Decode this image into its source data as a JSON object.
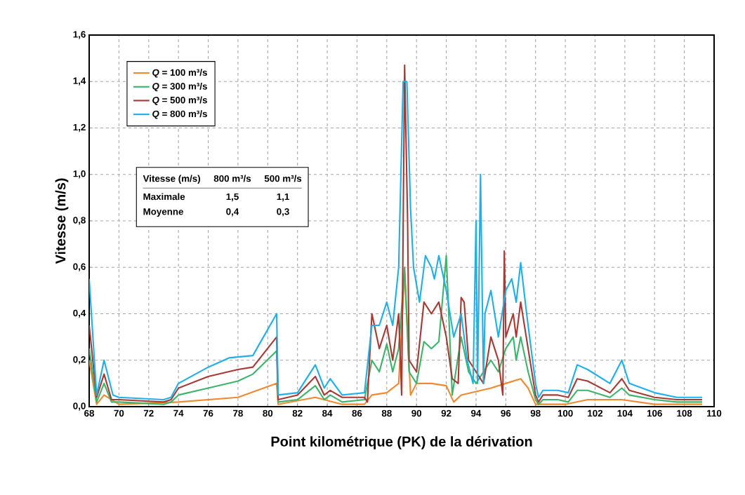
{
  "chart_data": {
    "type": "line",
    "xlabel": "Point kilométrique (PK) de la dérivation",
    "ylabel": "Vitesse (m/s)",
    "xlim": [
      68,
      110
    ],
    "ylim": [
      0,
      1.6
    ],
    "xticks": [
      68,
      70,
      72,
      74,
      76,
      78,
      80,
      82,
      84,
      86,
      88,
      90,
      92,
      94,
      96,
      98,
      100,
      102,
      104,
      106,
      108,
      110
    ],
    "yticks": [
      {
        "value": 0,
        "label": "0,0"
      },
      {
        "value": 0.2,
        "label": "0,2"
      },
      {
        "value": 0.4,
        "label": "0,4"
      },
      {
        "value": 0.6,
        "label": "0,6"
      },
      {
        "value": 0.8,
        "label": "0,8"
      },
      {
        "value": 1.0,
        "label": "1,0"
      },
      {
        "value": 1.2,
        "label": "1,2"
      },
      {
        "value": 1.4,
        "label": "1,4"
      },
      {
        "value": 1.6,
        "label": "1,6"
      }
    ],
    "grid": true,
    "legend": "top left",
    "line_style": "solid",
    "annotations": [
      "Vitesse (m/s)",
      "800 m³/s",
      "500 m³/s",
      "Maximale",
      "1,5",
      "1,1",
      "Moyenne",
      "0,4",
      "0,3"
    ],
    "series": [
      {
        "name": "*Q* = 100 m³/s",
        "color": "#f08a30",
        "x": [
          68,
          68.5,
          69,
          70,
          74,
          78,
          80.6,
          80.7,
          83.2,
          85,
          86.5,
          87,
          88,
          88.8,
          89.2,
          89.6,
          90,
          91,
          92,
          92.5,
          93,
          95,
          96,
          97,
          97.5,
          98,
          100,
          101.5,
          103.8,
          106,
          109.2
        ],
        "values": [
          0.2,
          0.01,
          0.05,
          0.01,
          0.02,
          0.04,
          0.1,
          0.01,
          0.04,
          0.01,
          0.01,
          0.05,
          0.06,
          0.1,
          0.58,
          0.05,
          0.1,
          0.1,
          0.09,
          0.02,
          0.05,
          0.08,
          0.1,
          0.12,
          0.08,
          0.01,
          0.01,
          0.03,
          0.03,
          0.01,
          0.01
        ]
      },
      {
        "name": "*Q* = 300 m³/s",
        "color": "#3cb56a",
        "x": [
          68,
          68.5,
          69,
          69.5,
          70,
          73,
          73.5,
          74,
          76,
          78,
          79,
          80.6,
          80.7,
          82,
          83.2,
          83.8,
          84.2,
          85,
          86.5,
          87,
          87.5,
          88,
          88.4,
          88.8,
          89.2,
          89.5,
          90,
          90.5,
          91,
          91.5,
          92,
          92.4,
          93,
          93.5,
          94,
          95,
          95.5,
          96,
          96.5,
          96.7,
          97,
          97.5,
          98,
          98.2,
          98.5,
          99.5,
          100.2,
          100.8,
          101.5,
          103,
          103.8,
          104.3,
          106,
          107.5,
          109.2
        ],
        "values": [
          0.25,
          0.02,
          0.1,
          0.02,
          0.02,
          0.01,
          0.02,
          0.05,
          0.08,
          0.11,
          0.14,
          0.24,
          0.02,
          0.03,
          0.09,
          0.03,
          0.05,
          0.02,
          0.03,
          0.2,
          0.15,
          0.27,
          0.15,
          0.25,
          0.6,
          0.15,
          0.1,
          0.28,
          0.25,
          0.28,
          0.65,
          0.05,
          0.3,
          0.15,
          0.1,
          0.2,
          0.15,
          0.25,
          0.3,
          0.2,
          0.3,
          0.15,
          0.03,
          0.01,
          0.03,
          0.03,
          0.02,
          0.07,
          0.07,
          0.04,
          0.08,
          0.05,
          0.03,
          0.02,
          0.02
        ]
      },
      {
        "name": "*Q* = 500 m³/s",
        "color": "#a83a35",
        "x": [
          68,
          68.5,
          69,
          69.5,
          70,
          73,
          73.5,
          74,
          76,
          78,
          79,
          80.6,
          80.7,
          82,
          83.2,
          83.8,
          84.2,
          85,
          86.5,
          86.7,
          87,
          87.5,
          88,
          88.4,
          88.8,
          89,
          89.2,
          89.4,
          89.5,
          90,
          90.5,
          91,
          91.5,
          92,
          92.4,
          92.8,
          93,
          93.2,
          93.5,
          94,
          94.5,
          95,
          95.5,
          95.8,
          95.9,
          96,
          96.5,
          96.7,
          97,
          97.5,
          98,
          98.2,
          98.5,
          99.5,
          100.2,
          100.8,
          101.5,
          103,
          103.8,
          104.3,
          106,
          107.5,
          109.2
        ],
        "values": [
          0.35,
          0.04,
          0.14,
          0.03,
          0.03,
          0.02,
          0.03,
          0.08,
          0.13,
          0.16,
          0.17,
          0.3,
          0.03,
          0.05,
          0.13,
          0.05,
          0.07,
          0.04,
          0.04,
          0.02,
          0.4,
          0.25,
          0.35,
          0.2,
          0.4,
          0.05,
          1.47,
          0.8,
          0.2,
          0.15,
          0.45,
          0.4,
          0.45,
          0.3,
          0.12,
          0.1,
          0.47,
          0.45,
          0.2,
          0.15,
          0.1,
          0.3,
          0.2,
          0.05,
          0.67,
          0.3,
          0.4,
          0.3,
          0.45,
          0.25,
          0.05,
          0.02,
          0.05,
          0.05,
          0.04,
          0.12,
          0.11,
          0.06,
          0.12,
          0.07,
          0.04,
          0.03,
          0.03
        ]
      },
      {
        "name": "*Q* = 800 m³/s",
        "color": "#1fb0e8",
        "x": [
          68,
          68.5,
          69,
          69.6,
          70,
          73,
          73.5,
          74,
          76,
          77.4,
          79,
          80.6,
          80.7,
          82,
          83.2,
          83.8,
          84.2,
          85,
          86.5,
          87,
          87.5,
          88,
          88.4,
          88.8,
          89.1,
          89.35,
          89.6,
          89.8,
          90.2,
          90.6,
          91,
          91.2,
          91.5,
          92,
          92.5,
          93,
          93.4,
          93.8,
          94,
          94.1,
          94.3,
          94.5,
          94.6,
          95,
          95.5,
          96,
          96.4,
          96.7,
          97,
          97.4,
          98,
          98.2,
          98.5,
          99.5,
          100.2,
          100.8,
          101.5,
          103,
          103.8,
          104.3,
          106,
          107.5,
          109.2
        ],
        "values": [
          0.55,
          0.05,
          0.2,
          0.05,
          0.04,
          0.03,
          0.04,
          0.1,
          0.17,
          0.21,
          0.22,
          0.4,
          0.05,
          0.06,
          0.18,
          0.08,
          0.12,
          0.05,
          0.06,
          0.35,
          0.35,
          0.45,
          0.35,
          0.6,
          1.4,
          1.4,
          0.85,
          0.6,
          0.45,
          0.65,
          0.6,
          0.55,
          0.65,
          0.5,
          0.3,
          0.4,
          0.2,
          0.1,
          0.8,
          0.1,
          1.0,
          0.1,
          0.4,
          0.5,
          0.3,
          0.5,
          0.55,
          0.45,
          0.62,
          0.4,
          0.1,
          0.04,
          0.07,
          0.07,
          0.06,
          0.18,
          0.16,
          0.1,
          0.2,
          0.1,
          0.06,
          0.04,
          0.04
        ]
      }
    ]
  }
}
